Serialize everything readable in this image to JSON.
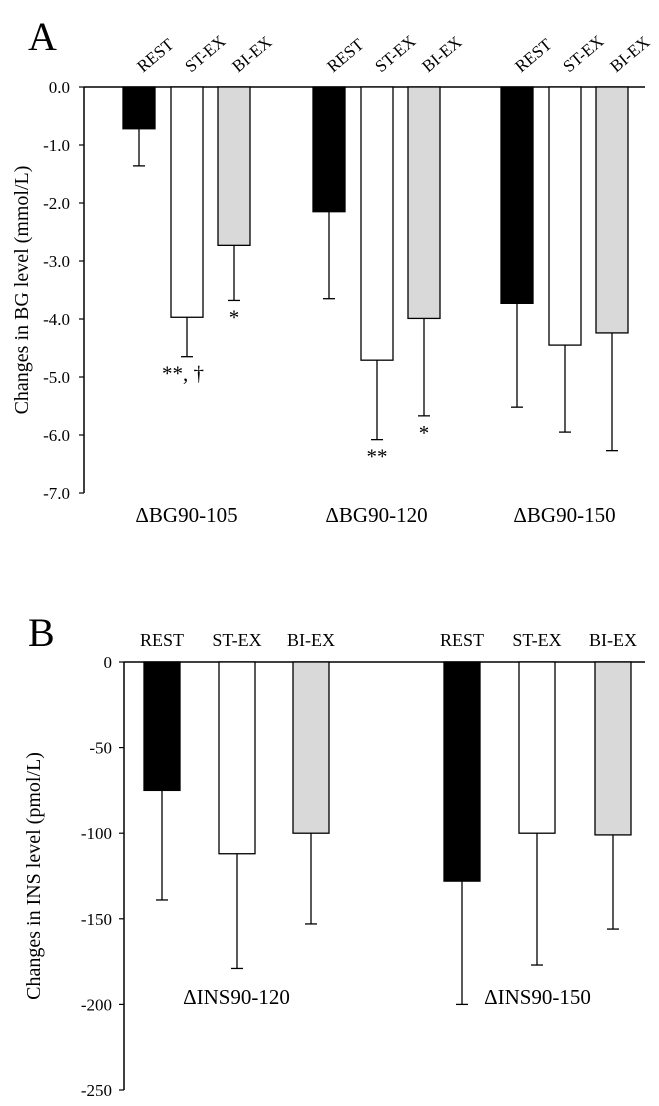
{
  "panel_a_letter": "A",
  "panel_b_letter": "B",
  "colors": {
    "REST": "#000000",
    "ST-EX": "#ffffff",
    "BI-EX": "#d9d9d9",
    "outline": "#000000"
  },
  "chart_data": [
    {
      "type": "bar",
      "panel": "A",
      "ylabel": "Changes in BG level (mmol/L)",
      "ylim": [
        -7.0,
        0.0
      ],
      "yticks": [
        "0.0",
        "-1.0",
        "-2.0",
        "-3.0",
        "-4.0",
        "-5.0",
        "-6.0",
        "-7.0"
      ],
      "ytick_values": [
        0,
        -1,
        -2,
        -3,
        -4,
        -5,
        -6,
        -7
      ],
      "categories": [
        "ΔBG90-105",
        "ΔBG90-120",
        "ΔBG90-150"
      ],
      "series": [
        {
          "name": "REST",
          "values": [
            -0.72,
            -2.15,
            -3.73
          ],
          "errors": [
            0.64,
            1.5,
            1.79
          ],
          "sig": [
            "",
            "",
            ""
          ]
        },
        {
          "name": "ST-EX",
          "values": [
            -3.97,
            -4.71,
            -4.45
          ],
          "errors": [
            0.68,
            1.37,
            1.5
          ],
          "sig": [
            "**, †",
            "**",
            ""
          ]
        },
        {
          "name": "BI-EX",
          "values": [
            -2.73,
            -3.99,
            -4.24
          ],
          "errors": [
            0.95,
            1.68,
            2.03
          ],
          "sig": [
            "*",
            "*",
            ""
          ]
        }
      ],
      "legend_placement": "labels above each bar, rotated",
      "grid": false
    },
    {
      "type": "bar",
      "panel": "B",
      "ylabel": "Changes in INS level (pmol/L)",
      "ylim": [
        -250,
        0
      ],
      "yticks": [
        "0",
        "-50",
        "-100",
        "-150",
        "-200",
        "-250"
      ],
      "ytick_values": [
        0,
        -50,
        -100,
        -150,
        -200,
        -250
      ],
      "categories": [
        "ΔINS90-120",
        "ΔINS90-150"
      ],
      "series": [
        {
          "name": "REST",
          "values": [
            -75,
            -128
          ],
          "errors": [
            64,
            72
          ]
        },
        {
          "name": "ST-EX",
          "values": [
            -112,
            -100
          ],
          "errors": [
            67,
            77
          ]
        },
        {
          "name": "BI-EX",
          "values": [
            -100,
            -101
          ],
          "errors": [
            53,
            55
          ]
        }
      ],
      "legend_placement": "labels above each bar",
      "grid": false
    }
  ]
}
